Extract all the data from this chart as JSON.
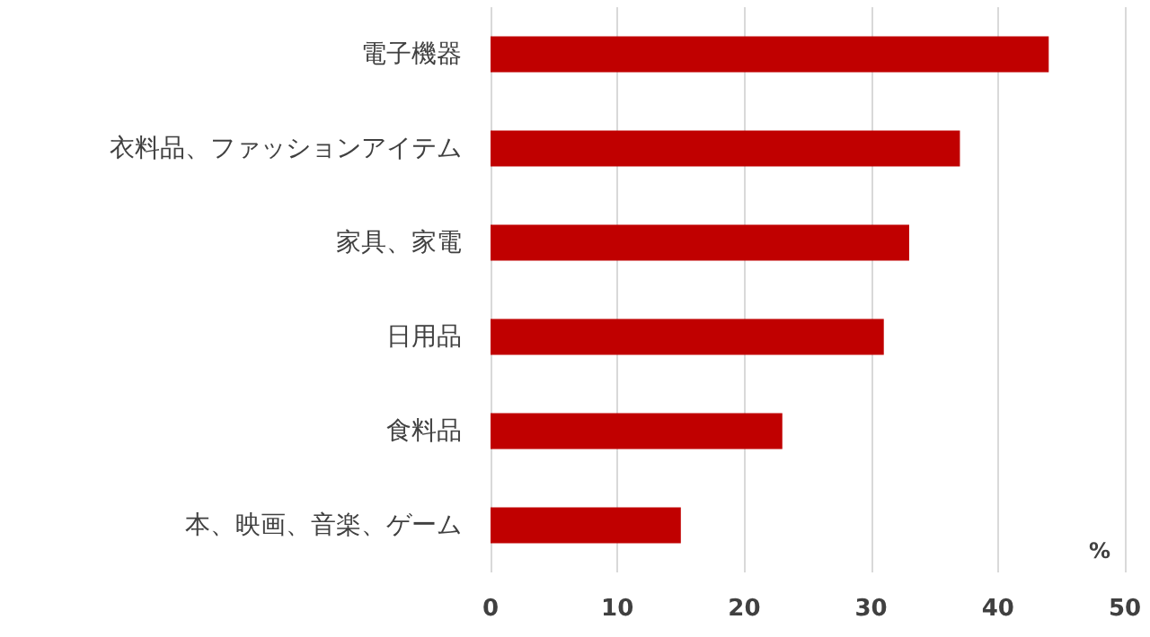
{
  "chart_data": {
    "type": "bar",
    "orientation": "horizontal",
    "xlabel": "%",
    "categories": [
      "電子機器",
      "衣料品、ファッションアイテム",
      "家具、家電",
      "日用品",
      "食料品",
      "本、映画、音楽、ゲーム"
    ],
    "values": [
      44,
      37,
      33,
      31,
      23,
      15
    ],
    "color": "#c00000",
    "xlim": [
      0,
      50
    ],
    "xticks": [
      0,
      10,
      20,
      30,
      40,
      50
    ],
    "grid": "x"
  }
}
